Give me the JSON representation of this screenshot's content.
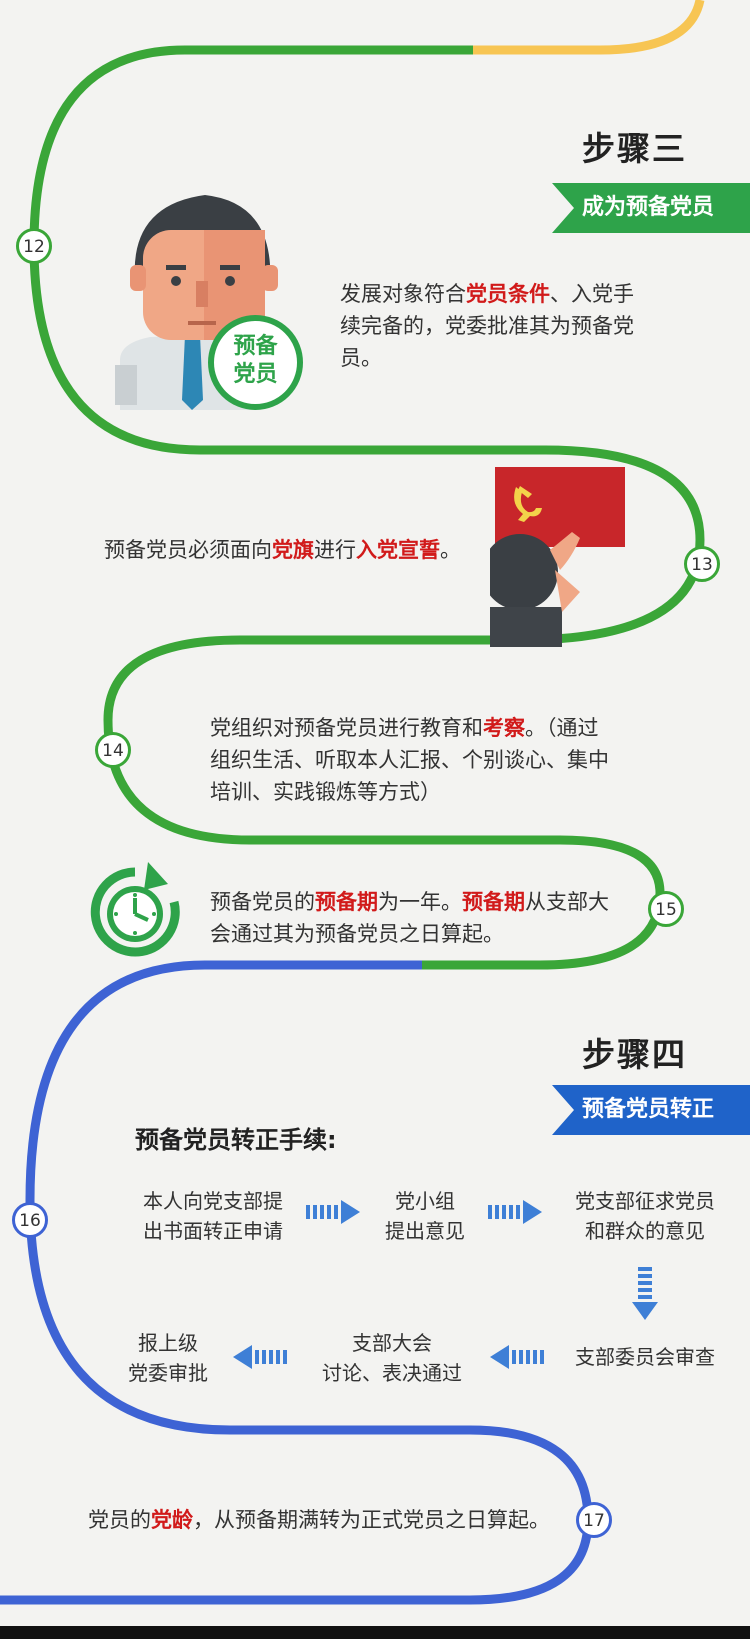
{
  "colors": {
    "green": "#3aa638",
    "blue": "#3e63d4",
    "yellow": "#f7c553",
    "red": "#d11a1a",
    "bannerGreen": "#2ea34a",
    "bannerBlue": "#1f63c9"
  },
  "step3": {
    "title": "步骤三",
    "banner": "成为预备党员",
    "badge_line1": "预备",
    "badge_line2": "党员"
  },
  "items": {
    "n12": {
      "num": "12",
      "t1": "发展对象符合",
      "h1": "党员条件",
      "t2": "、入党手续完备的，党委批准其为预备党员。"
    },
    "n13": {
      "num": "13",
      "t1": "预备党员必须面向",
      "h1": "党旗",
      "t2": "进行",
      "h2": "入党宣誓",
      "t3": "。"
    },
    "n14": {
      "num": "14",
      "t1": "党组织对预备党员进行教育和",
      "h1": "考察",
      "t2": "。（通过组织生活、听取本人汇报、个别谈心、集中培训、实践锻炼等方式）"
    },
    "n15": {
      "num": "15",
      "t1": "预备党员的",
      "h1": "预备期",
      "t2": "为一年。",
      "h2": "预备期",
      "t3": "从支部大会通过其为预备党员之日算起。"
    },
    "n16": {
      "num": "16"
    },
    "n17": {
      "num": "17",
      "t1": "党员的",
      "h1": "党龄",
      "t2": "，从预备期满转为正式党员之日算起。"
    }
  },
  "step4": {
    "title": "步骤四",
    "banner": "预备党员转正",
    "procedure_title": "预备党员转正手续:",
    "flow": {
      "s1_l1": "本人向党支部提",
      "s1_l2": "出书面转正申请",
      "s2_l1": "党小组",
      "s2_l2": "提出意见",
      "s3_l1": "党支部征求党员",
      "s3_l2": "和群众的意见",
      "s4": "支部委员会审查",
      "s5_l1": "支部大会",
      "s5_l2": "讨论、表决通过",
      "s6_l1": "报上级",
      "s6_l2": "党委审批"
    }
  }
}
